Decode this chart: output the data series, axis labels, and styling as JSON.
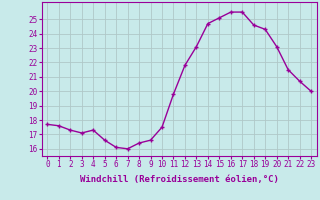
{
  "x": [
    0,
    1,
    2,
    3,
    4,
    5,
    6,
    7,
    8,
    9,
    10,
    11,
    12,
    13,
    14,
    15,
    16,
    17,
    18,
    19,
    20,
    21,
    22,
    23
  ],
  "y": [
    17.7,
    17.6,
    17.3,
    17.1,
    17.3,
    16.6,
    16.1,
    16.0,
    16.4,
    16.6,
    17.5,
    19.8,
    21.8,
    23.1,
    24.7,
    25.1,
    25.5,
    25.5,
    24.6,
    24.3,
    23.1,
    21.5,
    20.7,
    20.0
  ],
  "line_color": "#990099",
  "marker_color": "#990099",
  "bg_color": "#c8eaea",
  "grid_color": "#b0c8c8",
  "xlabel": "Windchill (Refroidissement éolien,°C)",
  "ylim": [
    15.5,
    26.2
  ],
  "yticks": [
    16,
    17,
    18,
    19,
    20,
    21,
    22,
    23,
    24,
    25
  ],
  "xticks": [
    0,
    1,
    2,
    3,
    4,
    5,
    6,
    7,
    8,
    9,
    10,
    11,
    12,
    13,
    14,
    15,
    16,
    17,
    18,
    19,
    20,
    21,
    22,
    23
  ],
  "tick_fontsize": 5.5,
  "xlabel_fontsize": 6.5,
  "line_width": 1.0,
  "marker_size": 2.5
}
